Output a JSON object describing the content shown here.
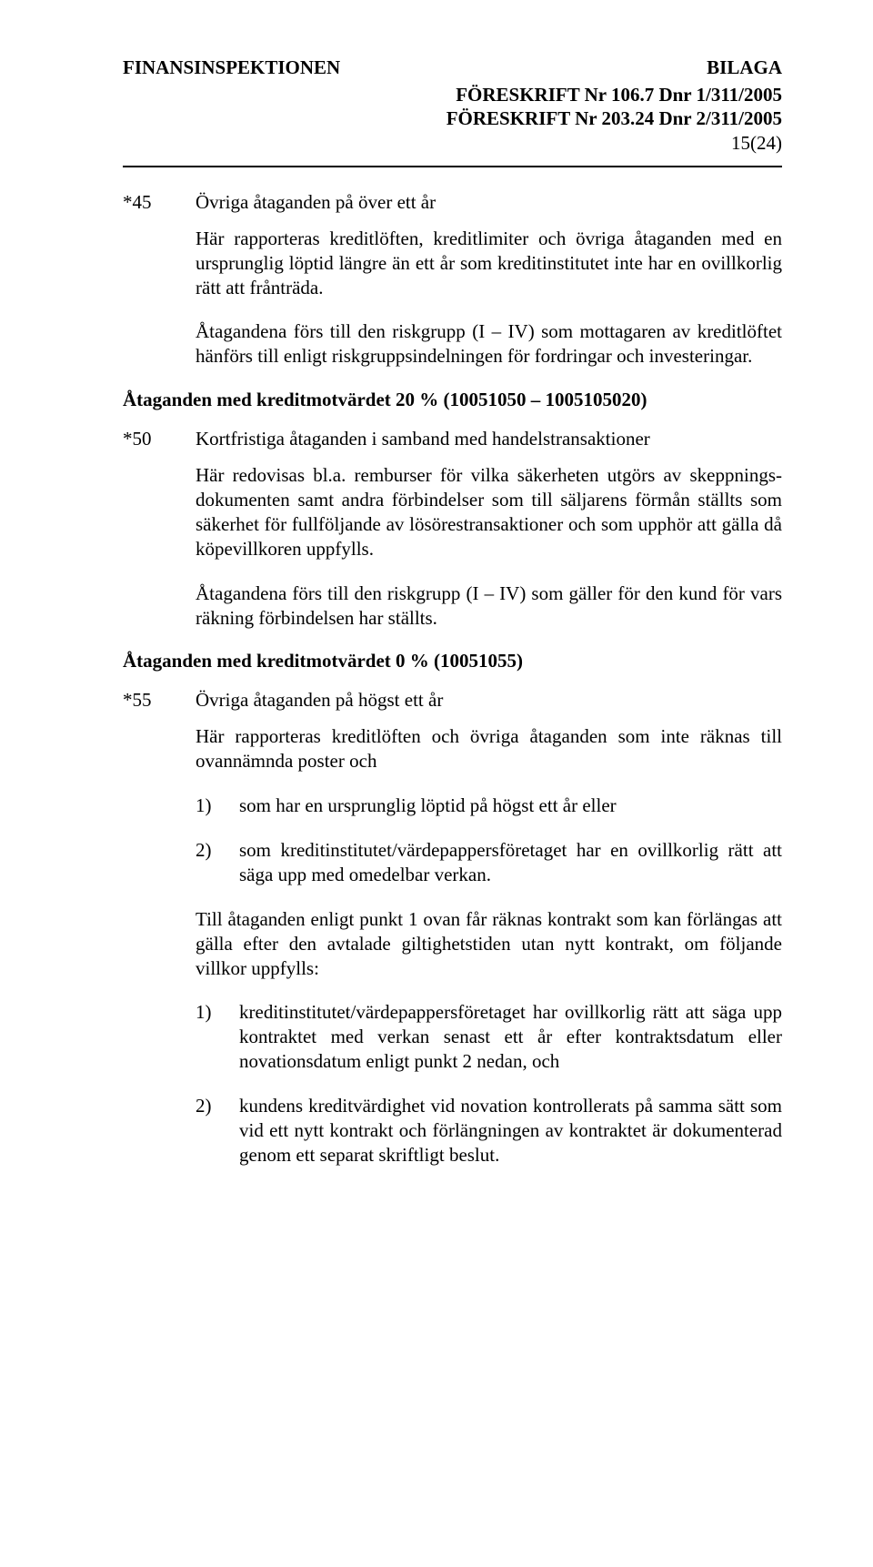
{
  "header": {
    "left": "FINANSINSPEKTIONEN",
    "right": "BILAGA",
    "line1": "FÖRESKRIFT Nr 106.7 Dnr 1/311/2005",
    "line2": "FÖRESKRIFT Nr 203.24 Dnr 2/311/2005",
    "pageno": "15(24)"
  },
  "s45": {
    "code": "*45",
    "title": "Övriga åtaganden på över ett år",
    "p1": "Här rapporteras kreditlöften, kreditlimiter och övriga åtaganden med en ursprunglig löptid längre än ett år som kreditinstitutet inte har en ovillkorlig rätt att frånträda.",
    "p2": "Åtagandena förs till den riskgrupp (I – IV) som mottagaren av kreditlöftet hänförs till enligt riskgruppsindelningen för fordringar och investeringar."
  },
  "h20": "Åtaganden med kreditmotvärdet 20 % (10051050 – 1005105020)",
  "s50": {
    "code": "*50",
    "title": "Kortfristiga åtaganden i samband med handelstransaktioner",
    "p1": "Här redovisas bl.a. remburser för vilka säkerheten utgörs av skeppnings­dokumenten samt andra förbindelser som till säljarens förmån ställts som säkerhet för fullföljande av lösörestransaktioner och som upphör att gälla då köpevillkoren uppfylls.",
    "p2": "Åtagandena förs till den riskgrupp (I – IV) som gäller för den kund för vars räkning förbindelsen har ställts."
  },
  "h0": "Åtaganden med kreditmotvärdet 0 % (10051055)",
  "s55": {
    "code": "*55",
    "title": "Övriga åtaganden på högst ett år",
    "p1": "Här rapporteras kreditlöften och övriga åtaganden som inte räknas till ovannämnda poster och",
    "l1n": "1)",
    "l1t": "som har en ursprunglig löptid på högst ett år eller",
    "l2n": "2)",
    "l2t": "som kreditinstitutet/värdepappersföretaget har en ovillkorlig rätt att säga upp med omedelbar verkan.",
    "p2": "Till åtaganden enligt punkt 1 ovan får räknas kontrakt som kan förlängas att gälla efter den avtalade giltighetstiden utan nytt kontrakt, om följande villkor uppfylls:",
    "l3n": "1)",
    "l3t": "kreditinstitutet/värdepappersföretaget har ovillkorlig rätt att säga upp kontraktet med verkan senast ett år efter kontraktsdatum eller novationsdatum enligt punkt 2 nedan, och",
    "l4n": "2)",
    "l4t": "kundens kreditvärdighet vid novation kontrollerats på samma sätt som vid ett nytt kontrakt och förlängningen av kontraktet är dokumenterad genom ett separat skriftligt beslut."
  }
}
